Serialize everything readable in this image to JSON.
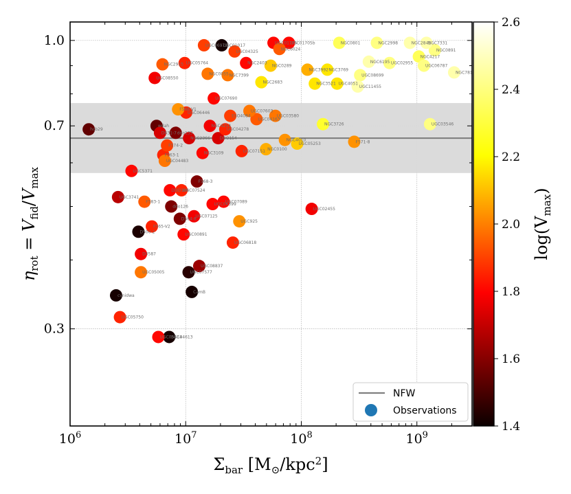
{
  "chart_data": {
    "type": "scatter",
    "title": "",
    "xlabel": "Σ_bar [M⊙/kpc²]",
    "ylabel": "η_rot = V_fid/V_max",
    "xscale": "log",
    "yscale": "log",
    "xlim": [
      1000000,
      3000000000
    ],
    "ylim": [
      0.2,
      1.08
    ],
    "x_ticks": [
      {
        "value": 1000000,
        "base": "10",
        "exp": "6"
      },
      {
        "value": 10000000,
        "base": "10",
        "exp": "7"
      },
      {
        "value": 100000000,
        "base": "10",
        "exp": "8"
      },
      {
        "value": 1000000000,
        "base": "10",
        "exp": "9"
      }
    ],
    "y_ticks": [
      {
        "value": 0.3,
        "label": "0.3"
      },
      {
        "value": 0.7,
        "label": "0.7"
      },
      {
        "value": 1.0,
        "label": "1.0"
      }
    ],
    "grid": true,
    "nfw_band": {
      "median": 0.665,
      "low": 0.575,
      "high": 0.77
    },
    "colorbar": {
      "label": "log(V_max)",
      "range": [
        1.4,
        2.6
      ],
      "ticks": [
        "1.4",
        "1.6",
        "1.8",
        "2.0",
        "2.2",
        "2.4",
        "2.6"
      ]
    },
    "legend": {
      "position": "bottom-right",
      "entries": [
        {
          "label": "NFW",
          "kind": "line",
          "color": "#808080"
        },
        {
          "label": "Observations",
          "kind": "marker",
          "color": "#1f77b4"
        }
      ]
    },
    "points": [
      {
        "x": 1450000,
        "y": 0.69,
        "c": 1.55,
        "label": "hcb29"
      },
      {
        "x": 2600000,
        "y": 0.52,
        "c": 1.7,
        "label": "UGC3741"
      },
      {
        "x": 3400000,
        "y": 0.58,
        "c": 1.85,
        "label": "UGC5371"
      },
      {
        "x": 2500000,
        "y": 0.345,
        "c": 1.42,
        "label": "cvnidwa"
      },
      {
        "x": 2700000,
        "y": 0.315,
        "c": 1.9,
        "label": "UGC05750"
      },
      {
        "x": 3900000,
        "y": 0.45,
        "c": 1.43,
        "label": "D500-2"
      },
      {
        "x": 4100000,
        "y": 0.41,
        "c": 1.8,
        "label": "D0587"
      },
      {
        "x": 4100000,
        "y": 0.38,
        "c": 2.05,
        "label": "UGC05005"
      },
      {
        "x": 4400000,
        "y": 0.51,
        "c": 2.0,
        "label": "F583-1"
      },
      {
        "x": 5100000,
        "y": 0.46,
        "c": 1.9,
        "label": "F565-V2"
      },
      {
        "x": 5400000,
        "y": 0.855,
        "c": 1.8,
        "label": "UGC08550"
      },
      {
        "x": 5600000,
        "y": 0.7,
        "c": 1.55,
        "label": "wdah"
      },
      {
        "x": 5800000,
        "y": 0.29,
        "c": 1.85,
        "label": "UGC05414"
      },
      {
        "x": 6000000,
        "y": 0.68,
        "c": 1.75,
        "label": "D631-7"
      },
      {
        "x": 6300000,
        "y": 0.905,
        "c": 2.0,
        "label": "NGC2915"
      },
      {
        "x": 6400000,
        "y": 0.62,
        "c": 1.9,
        "label": "F563-1"
      },
      {
        "x": 6600000,
        "y": 0.605,
        "c": 2.05,
        "label": "UGC04483"
      },
      {
        "x": 6900000,
        "y": 0.645,
        "c": 1.95,
        "label": "F574-2"
      },
      {
        "x": 7200000,
        "y": 0.29,
        "c": 1.42,
        "label": "UGC04613"
      },
      {
        "x": 7300000,
        "y": 0.535,
        "c": 1.85,
        "label": "DDO168"
      },
      {
        "x": 7500000,
        "y": 0.5,
        "c": 1.6,
        "label": "ddo126"
      },
      {
        "x": 8200000,
        "y": 0.68,
        "c": 1.6,
        "label": "ddo133"
      },
      {
        "x": 8600000,
        "y": 0.75,
        "c": 2.1,
        "label": "F568-V1"
      },
      {
        "x": 8900000,
        "y": 0.475,
        "c": 1.6,
        "label": "D564-8"
      },
      {
        "x": 9200000,
        "y": 0.535,
        "c": 1.9,
        "label": "UGC07524"
      },
      {
        "x": 9600000,
        "y": 0.445,
        "c": 1.85,
        "label": "UGC00891"
      },
      {
        "x": 9800000,
        "y": 0.91,
        "c": 1.9,
        "label": "UGC05764"
      },
      {
        "x": 10100000,
        "y": 0.74,
        "c": 1.9,
        "label": "UGC06446"
      },
      {
        "x": 10600000,
        "y": 0.38,
        "c": 1.45,
        "label": "UGC07577"
      },
      {
        "x": 10700000,
        "y": 0.665,
        "c": 1.75,
        "label": "NGC2366"
      },
      {
        "x": 11300000,
        "y": 0.35,
        "c": 1.42,
        "label": "CamB"
      },
      {
        "x": 11800000,
        "y": 0.48,
        "c": 1.8,
        "label": "UGC07125"
      },
      {
        "x": 12500000,
        "y": 0.555,
        "c": 1.6,
        "label": "F568-3"
      },
      {
        "x": 13100000,
        "y": 0.39,
        "c": 1.65,
        "label": "UGC08837"
      },
      {
        "x": 14000000,
        "y": 0.625,
        "c": 1.85,
        "label": "NGC3109"
      },
      {
        "x": 14400000,
        "y": 0.98,
        "c": 1.95,
        "label": "UGC06973"
      },
      {
        "x": 15500000,
        "y": 0.87,
        "c": 2.05,
        "label": "NGC0055"
      },
      {
        "x": 16200000,
        "y": 0.7,
        "c": 1.8,
        "label": "NGC4214"
      },
      {
        "x": 17100000,
        "y": 0.505,
        "c": 1.85,
        "label": "UGC06399"
      },
      {
        "x": 17500000,
        "y": 0.785,
        "c": 1.85,
        "label": "UGC07690"
      },
      {
        "x": 19100000,
        "y": 0.665,
        "c": 1.75,
        "label": "DDO154"
      },
      {
        "x": 20500000,
        "y": 0.98,
        "c": 1.42,
        "label": "UGC01017"
      },
      {
        "x": 21300000,
        "y": 0.51,
        "c": 1.85,
        "label": "UGC07089"
      },
      {
        "x": 22000000,
        "y": 0.69,
        "c": 1.9,
        "label": "UGC04278"
      },
      {
        "x": 23100000,
        "y": 0.865,
        "c": 2.05,
        "label": "NGC7399"
      },
      {
        "x": 24300000,
        "y": 0.73,
        "c": 1.95,
        "label": "ESO4084"
      },
      {
        "x": 25600000,
        "y": 0.43,
        "c": 1.9,
        "label": "UGC06818"
      },
      {
        "x": 26500000,
        "y": 0.955,
        "c": 1.95,
        "label": "UGC04325"
      },
      {
        "x": 29100000,
        "y": 0.47,
        "c": 2.1,
        "label": "UGC925"
      },
      {
        "x": 30500000,
        "y": 0.63,
        "c": 1.9,
        "label": "UGC07151"
      },
      {
        "x": 33300000,
        "y": 0.91,
        "c": 1.85,
        "label": "NGC2403"
      },
      {
        "x": 35600000,
        "y": 0.745,
        "c": 2.05,
        "label": "UGC07603"
      },
      {
        "x": 41000000,
        "y": 0.72,
        "c": 2.0,
        "label": "UGC04163"
      },
      {
        "x": 45200000,
        "y": 0.84,
        "c": 2.25,
        "label": "NGC2683"
      },
      {
        "x": 49500000,
        "y": 0.635,
        "c": 2.15,
        "label": "NGC0100"
      },
      {
        "x": 54300000,
        "y": 0.9,
        "c": 2.2,
        "label": "NGC0289"
      },
      {
        "x": 57500000,
        "y": 0.99,
        "c": 1.85,
        "label": "UGC01705"
      },
      {
        "x": 59700000,
        "y": 0.73,
        "c": 2.05,
        "label": "UGC03580"
      },
      {
        "x": 64700000,
        "y": 0.965,
        "c": 2.0,
        "label": "NGC6024"
      },
      {
        "x": 72200000,
        "y": 0.66,
        "c": 2.1,
        "label": "NGC4010"
      },
      {
        "x": 78100000,
        "y": 0.99,
        "c": 1.85,
        "label": "UGC01705b"
      },
      {
        "x": 92100000,
        "y": 0.65,
        "c": 2.2,
        "label": "UGC05253"
      },
      {
        "x": 113000000,
        "y": 0.885,
        "c": 2.15,
        "label": "NGC3992"
      },
      {
        "x": 123000000,
        "y": 0.495,
        "c": 1.8,
        "label": "UGC02455"
      },
      {
        "x": 131000000,
        "y": 0.835,
        "c": 2.25,
        "label": "NGC3521"
      },
      {
        "x": 154000000,
        "y": 0.705,
        "c": 2.35,
        "label": "NGC3726"
      },
      {
        "x": 168000000,
        "y": 0.885,
        "c": 2.25,
        "label": "NGC3769"
      },
      {
        "x": 204000000,
        "y": 0.835,
        "c": 2.25,
        "label": "UGC4051"
      },
      {
        "x": 213000000,
        "y": 0.99,
        "c": 2.4,
        "label": "NGC0801"
      },
      {
        "x": 287000000,
        "y": 0.655,
        "c": 2.1,
        "label": "F571-8"
      },
      {
        "x": 308000000,
        "y": 0.825,
        "c": 2.5,
        "label": "UGC11455"
      },
      {
        "x": 323000000,
        "y": 0.865,
        "c": 2.45,
        "label": "UGC08699"
      },
      {
        "x": 384000000,
        "y": 0.915,
        "c": 2.5,
        "label": "NGC6195"
      },
      {
        "x": 451000000,
        "y": 0.99,
        "c": 2.45,
        "label": "NGC2998"
      },
      {
        "x": 580000000,
        "y": 0.91,
        "c": 2.45,
        "label": "UGC02955"
      },
      {
        "x": 871000000,
        "y": 0.99,
        "c": 2.5,
        "label": "NGC2841"
      },
      {
        "x": 1040000000,
        "y": 0.935,
        "c": 2.4,
        "label": "NGC4217"
      },
      {
        "x": 1150000000,
        "y": 0.9,
        "c": 2.45,
        "label": "UGC06787"
      },
      {
        "x": 1210000000,
        "y": 0.99,
        "c": 2.5,
        "label": "NGC7331"
      },
      {
        "x": 1300000000,
        "y": 0.705,
        "c": 2.45,
        "label": "UGC03546"
      },
      {
        "x": 1430000000,
        "y": 0.96,
        "c": 2.45,
        "label": "NGC0891"
      },
      {
        "x": 2100000000,
        "y": 0.875,
        "c": 2.5,
        "label": "NGC7814"
      }
    ]
  }
}
